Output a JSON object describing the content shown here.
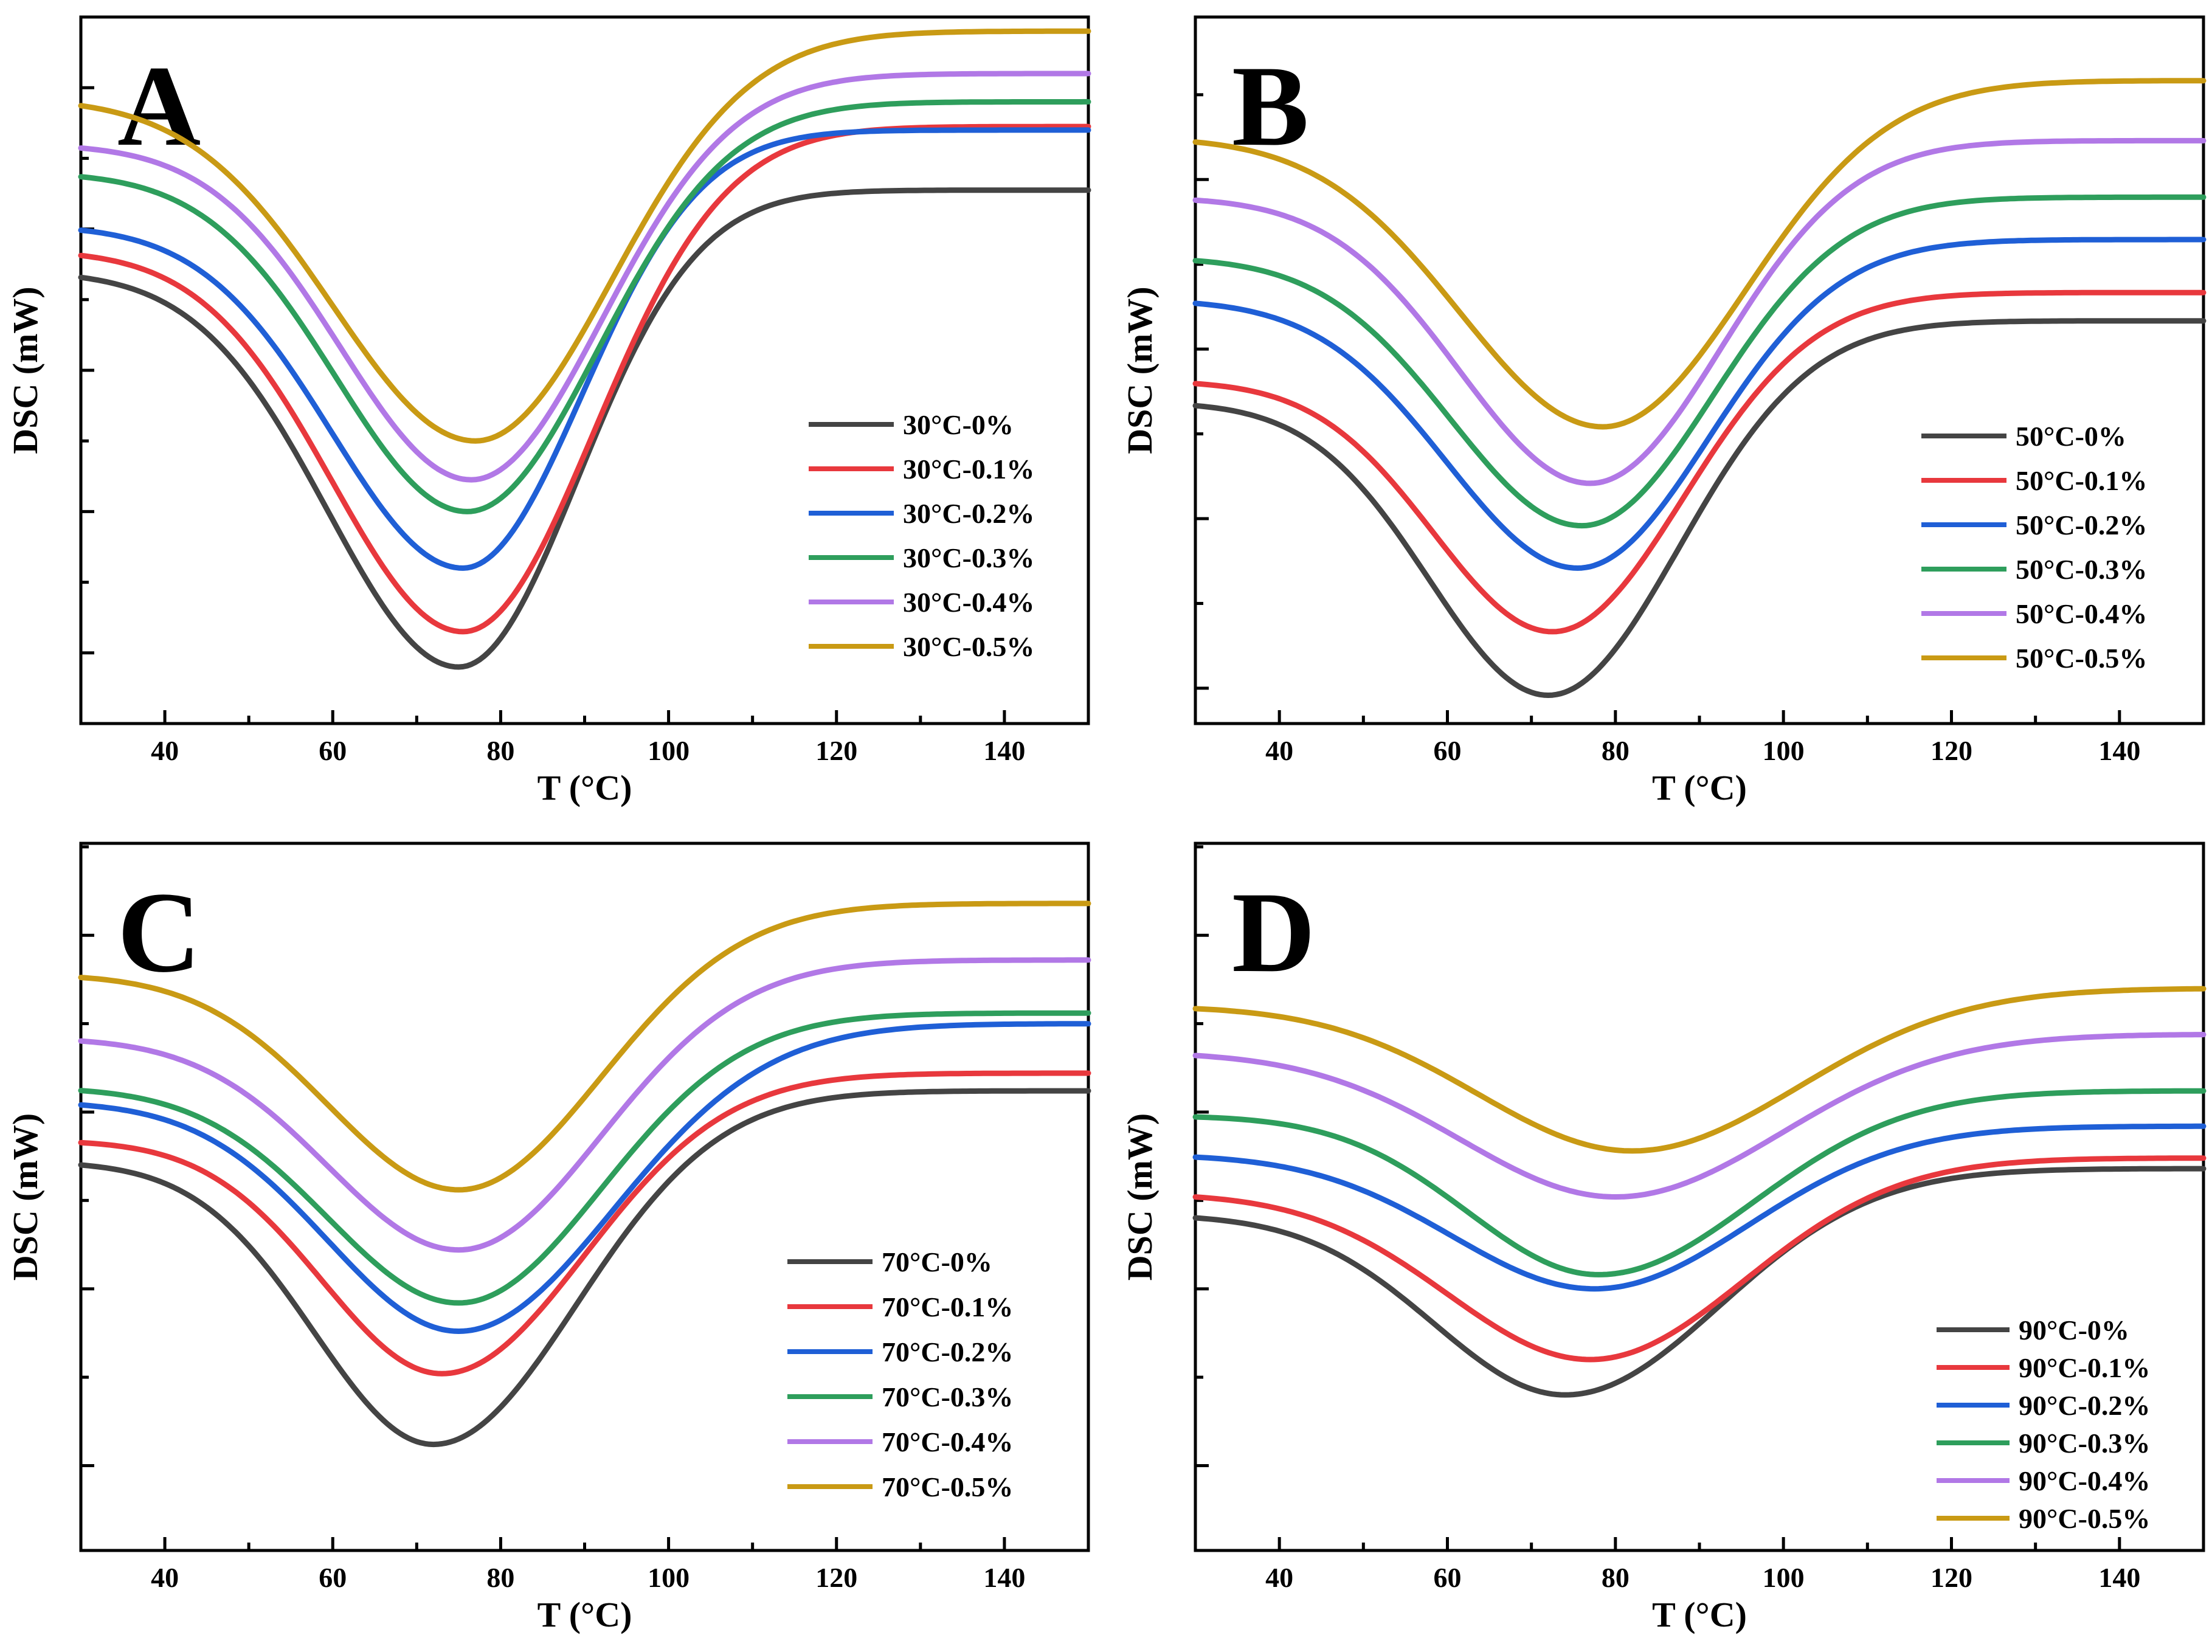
{
  "figure": {
    "colors": {
      "0%": "#444444",
      "0.1%": "#e8383d",
      "0.2%": "#1f5fd6",
      "0.3%": "#2e9e5c",
      "0.4%": "#b178e6",
      "0.5%": "#c99a14"
    }
  },
  "chart_data": [
    {
      "type": "line",
      "panel": "A",
      "xlabel": "T (°C)",
      "ylabel": "DSC (mW)",
      "xlim": [
        30,
        150
      ],
      "ylim": [
        0,
        10
      ],
      "x_ticks": [
        40,
        60,
        80,
        100,
        120,
        140
      ],
      "y_ticks_major": [
        1,
        3,
        5,
        7,
        9
      ],
      "legend_position": "lower-right",
      "series": [
        {
          "name": "30°C-0%",
          "level": "0%",
          "start": 6.4,
          "min": 0.8,
          "x_min": 75,
          "end": 7.55,
          "sl": 22,
          "sr": 20
        },
        {
          "name": "30°C-0.1%",
          "level": "0.1%",
          "start": 6.7,
          "min": 1.3,
          "x_min": 75.5,
          "end": 8.45,
          "sl": 22,
          "sr": 22
        },
        {
          "name": "30°C-0.2%",
          "level": "0.2%",
          "start": 7.05,
          "min": 2.2,
          "x_min": 75.5,
          "end": 8.4,
          "sl": 22,
          "sr": 20
        },
        {
          "name": "30°C-0.3%",
          "level": "0.3%",
          "start": 7.8,
          "min": 3.0,
          "x_min": 76,
          "end": 8.8,
          "sl": 22,
          "sr": 22
        },
        {
          "name": "30°C-0.4%",
          "level": "0.4%",
          "start": 8.2,
          "min": 3.45,
          "x_min": 76.5,
          "end": 9.2,
          "sl": 22,
          "sr": 22
        },
        {
          "name": "30°C-0.5%",
          "level": "0.5%",
          "start": 8.85,
          "min": 4.0,
          "x_min": 77,
          "end": 9.8,
          "sl": 24,
          "sr": 23
        }
      ]
    },
    {
      "type": "line",
      "panel": "B",
      "xlabel": "T (°C)",
      "ylabel": "DSC (mW)",
      "xlim": [
        30,
        150
      ],
      "ylim": [
        0,
        10
      ],
      "x_ticks": [
        40,
        60,
        80,
        100,
        120,
        140
      ],
      "y_ticks_major": [
        0.5,
        2.9,
        5.3,
        7.7
      ],
      "legend_position": "lower-right",
      "series": [
        {
          "name": "50°C-0%",
          "level": "0%",
          "start": 4.55,
          "min": 0.4,
          "x_min": 72,
          "end": 5.7,
          "sl": 20,
          "sr": 22
        },
        {
          "name": "50°C-0.1%",
          "level": "0.1%",
          "start": 4.85,
          "min": 1.3,
          "x_min": 72.5,
          "end": 6.1,
          "sl": 20,
          "sr": 22
        },
        {
          "name": "50°C-0.2%",
          "level": "0.2%",
          "start": 6.0,
          "min": 2.2,
          "x_min": 75.5,
          "end": 6.85,
          "sl": 22,
          "sr": 22
        },
        {
          "name": "50°C-0.3%",
          "level": "0.3%",
          "start": 6.6,
          "min": 2.8,
          "x_min": 76,
          "end": 7.45,
          "sl": 22,
          "sr": 22
        },
        {
          "name": "50°C-0.4%",
          "level": "0.4%",
          "start": 7.45,
          "min": 3.4,
          "x_min": 77,
          "end": 8.25,
          "sl": 22,
          "sr": 22
        },
        {
          "name": "50°C-0.5%",
          "level": "0.5%",
          "start": 8.3,
          "min": 4.2,
          "x_min": 78.5,
          "end": 9.1,
          "sl": 24,
          "sr": 24
        }
      ]
    },
    {
      "type": "line",
      "panel": "C",
      "xlabel": "T (°C)",
      "ylabel": "DSC (mW)",
      "xlim": [
        30,
        150
      ],
      "ylim": [
        0,
        10
      ],
      "x_ticks": [
        40,
        60,
        80,
        100,
        120,
        140
      ],
      "y_ticks_major": [
        1.2,
        3.7,
        6.2,
        8.7
      ],
      "legend_position": "lower-right",
      "series": [
        {
          "name": "70°C-0%",
          "level": "0%",
          "start": 5.5,
          "min": 1.5,
          "x_min": 72,
          "end": 6.5,
          "sl": 20,
          "sr": 24
        },
        {
          "name": "70°C-0.1%",
          "level": "0.1%",
          "start": 5.8,
          "min": 2.5,
          "x_min": 73,
          "end": 6.75,
          "sl": 20,
          "sr": 24
        },
        {
          "name": "70°C-0.2%",
          "level": "0.2%",
          "start": 6.35,
          "min": 3.1,
          "x_min": 75,
          "end": 7.45,
          "sl": 22,
          "sr": 26
        },
        {
          "name": "70°C-0.3%",
          "level": "0.3%",
          "start": 6.55,
          "min": 3.5,
          "x_min": 75,
          "end": 7.6,
          "sl": 22,
          "sr": 24
        },
        {
          "name": "70°C-0.4%",
          "level": "0.4%",
          "start": 7.25,
          "min": 4.25,
          "x_min": 75,
          "end": 8.35,
          "sl": 22,
          "sr": 24
        },
        {
          "name": "70°C-0.5%",
          "level": "0.5%",
          "start": 8.15,
          "min": 5.1,
          "x_min": 75,
          "end": 9.15,
          "sl": 22,
          "sr": 24
        }
      ]
    },
    {
      "type": "line",
      "panel": "D",
      "xlabel": "T (°C)",
      "ylabel": "DSC (mW)",
      "xlim": [
        30,
        150
      ],
      "ylim": [
        0,
        10
      ],
      "x_ticks": [
        40,
        60,
        80,
        100,
        120,
        140
      ],
      "y_ticks_major": [
        1.2,
        3.7,
        6.2,
        8.7
      ],
      "legend_position": "lower-right",
      "series": [
        {
          "name": "90°C-0%",
          "level": "0%",
          "start": 4.75,
          "min": 2.2,
          "x_min": 74,
          "end": 5.4,
          "sl": 22,
          "sr": 26
        },
        {
          "name": "90°C-0.1%",
          "level": "0.1%",
          "start": 5.05,
          "min": 2.7,
          "x_min": 77,
          "end": 5.55,
          "sl": 24,
          "sr": 26
        },
        {
          "name": "90°C-0.2%",
          "level": "0.2%",
          "start": 5.6,
          "min": 3.7,
          "x_min": 77.5,
          "end": 6.0,
          "sl": 24,
          "sr": 26
        },
        {
          "name": "90°C-0.3%",
          "level": "0.3%",
          "start": 6.15,
          "min": 3.9,
          "x_min": 78,
          "end": 6.5,
          "sl": 22,
          "sr": 26
        },
        {
          "name": "90°C-0.4%",
          "level": "0.4%",
          "start": 7.05,
          "min": 5.0,
          "x_min": 80,
          "end": 7.3,
          "sl": 26,
          "sr": 28
        },
        {
          "name": "90°C-0.5%",
          "level": "0.5%",
          "start": 7.7,
          "min": 5.65,
          "x_min": 82,
          "end": 7.95,
          "sl": 26,
          "sr": 28
        }
      ]
    }
  ]
}
